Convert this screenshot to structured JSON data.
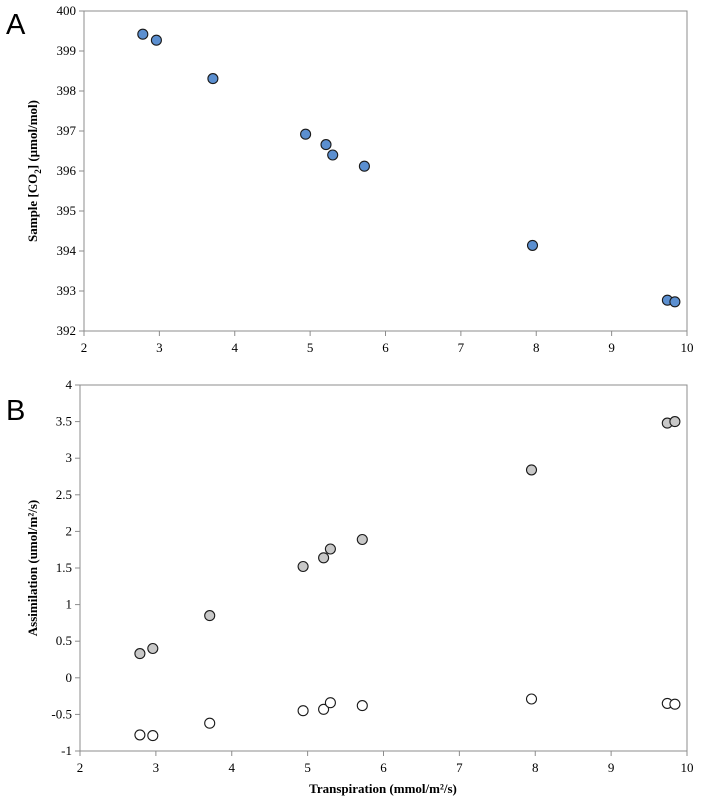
{
  "chart_data": [
    {
      "type": "scatter",
      "panel_label": "A",
      "title": "",
      "xlabel": "",
      "ylabel": "Sample [CO<sub>2</sub>] (µmol/mol)",
      "ylabel_parts": [
        "Sample [CO",
        "2",
        "] (µmol/mol)"
      ],
      "xlim": [
        2,
        10
      ],
      "ylim": [
        392,
        400
      ],
      "xticks": [
        2,
        3,
        4,
        5,
        6,
        7,
        8,
        9,
        10
      ],
      "yticks": [
        392,
        393,
        394,
        395,
        396,
        397,
        398,
        399,
        400
      ],
      "grid": false,
      "series": [
        {
          "color": "#5b8fd0",
          "points": [
            {
              "x": 2.78,
              "y": 399.42
            },
            {
              "x": 2.96,
              "y": 399.27
            },
            {
              "x": 3.71,
              "y": 398.31
            },
            {
              "x": 4.94,
              "y": 396.92
            },
            {
              "x": 5.21,
              "y": 396.66
            },
            {
              "x": 5.3,
              "y": 396.4
            },
            {
              "x": 5.72,
              "y": 396.12
            },
            {
              "x": 7.95,
              "y": 394.14
            },
            {
              "x": 9.74,
              "y": 392.77
            },
            {
              "x": 9.84,
              "y": 392.73
            }
          ]
        }
      ]
    },
    {
      "type": "scatter",
      "panel_label": "B",
      "title": "",
      "xlabel": "Transpiration (mmol/m²/s)",
      "ylabel": "Assimilation (umol/m²/s)",
      "xlim": [
        2,
        10
      ],
      "ylim": [
        -1,
        4
      ],
      "xticks": [
        2,
        3,
        4,
        5,
        6,
        7,
        8,
        9,
        10
      ],
      "yticks": [
        -1,
        -0.5,
        0,
        0.5,
        1,
        1.5,
        2,
        2.5,
        3,
        3.5,
        4
      ],
      "grid": false,
      "series": [
        {
          "color": "#c8c8c8",
          "points": [
            {
              "x": 2.79,
              "y": 0.33
            },
            {
              "x": 2.96,
              "y": 0.4
            },
            {
              "x": 3.71,
              "y": 0.85
            },
            {
              "x": 4.94,
              "y": 1.52
            },
            {
              "x": 5.21,
              "y": 1.64
            },
            {
              "x": 5.3,
              "y": 1.76
            },
            {
              "x": 5.72,
              "y": 1.89
            },
            {
              "x": 7.95,
              "y": 2.84
            },
            {
              "x": 9.74,
              "y": 3.48
            },
            {
              "x": 9.84,
              "y": 3.5
            }
          ]
        },
        {
          "color": "#ffffff",
          "points": [
            {
              "x": 2.79,
              "y": -0.78
            },
            {
              "x": 2.96,
              "y": -0.79
            },
            {
              "x": 3.71,
              "y": -0.62
            },
            {
              "x": 4.94,
              "y": -0.45
            },
            {
              "x": 5.21,
              "y": -0.43
            },
            {
              "x": 5.3,
              "y": -0.34
            },
            {
              "x": 5.72,
              "y": -0.38
            },
            {
              "x": 7.95,
              "y": -0.29
            },
            {
              "x": 9.74,
              "y": -0.35
            },
            {
              "x": 9.84,
              "y": -0.36
            }
          ]
        }
      ]
    }
  ]
}
